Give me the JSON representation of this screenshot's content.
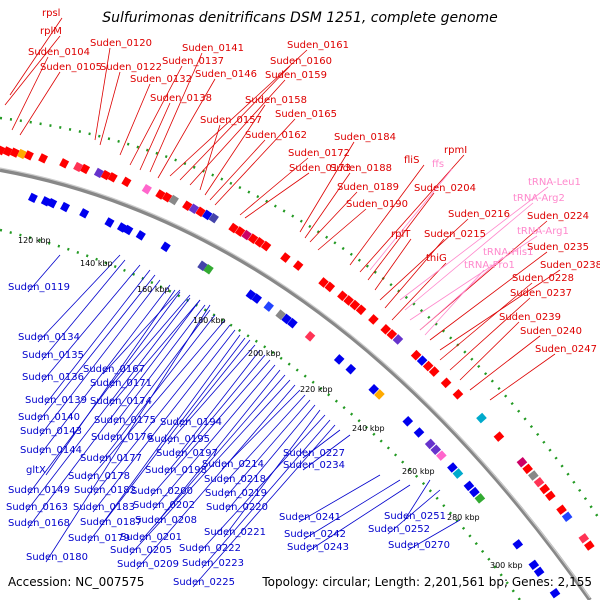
{
  "title": "Sulfurimonas denitrificans DSM 1251, complete genome",
  "accession": "Accession: NC_007575",
  "topology": "Topology: circular; Length: 2,201,561 bp; Genes: 2,155",
  "colors": {
    "outer_gene_label": "#dd0000",
    "inner_gene_label": "#0000cc",
    "rna_label": "#ff88cc",
    "backbone": "#888888",
    "tick": "#228822"
  },
  "scale_ticks": [
    "120 kbp",
    "140 kbp",
    "160 kbp",
    "180 kbp",
    "200 kbp",
    "220 kbp",
    "240 kbp",
    "260 kbp",
    "280 kbp",
    "300 kbp"
  ],
  "outer_labels": [
    {
      "id": "rpsl",
      "text": "rpsl"
    },
    {
      "id": "rplM",
      "text": "rplM"
    },
    {
      "id": "Suden_0104",
      "text": "Suden_0104"
    },
    {
      "id": "Suden_0105",
      "text": "Suden_0105"
    },
    {
      "id": "Suden_0120",
      "text": "Suden_0120"
    },
    {
      "id": "Suden_0122",
      "text": "Suden_0122"
    },
    {
      "id": "Suden_0132",
      "text": "Suden_0132"
    },
    {
      "id": "Suden_0137",
      "text": "Suden_0137"
    },
    {
      "id": "Suden_0138",
      "text": "Suden_0138"
    },
    {
      "id": "Suden_0141",
      "text": "Suden_0141"
    },
    {
      "id": "Suden_0146",
      "text": "Suden_0146"
    },
    {
      "id": "Suden_0157",
      "text": "Suden_0157"
    },
    {
      "id": "Suden_0158",
      "text": "Suden_0158"
    },
    {
      "id": "Suden_0159",
      "text": "Suden_0159"
    },
    {
      "id": "Suden_0160",
      "text": "Suden_0160"
    },
    {
      "id": "Suden_0161",
      "text": "Suden_0161"
    },
    {
      "id": "Suden_0162",
      "text": "Suden_0162"
    },
    {
      "id": "Suden_0165",
      "text": "Suden_0165"
    },
    {
      "id": "Suden_0172",
      "text": "Suden_0172"
    },
    {
      "id": "Suden_0173",
      "text": "Suden_0173"
    },
    {
      "id": "Suden_0184",
      "text": "Suden_0184"
    },
    {
      "id": "Suden_0188",
      "text": "Suden_0188"
    },
    {
      "id": "Suden_0189",
      "text": "Suden_0189"
    },
    {
      "id": "Suden_0190",
      "text": "Suden_0190"
    },
    {
      "id": "fliS",
      "text": "fliS"
    },
    {
      "id": "rpmI",
      "text": "rpmI"
    },
    {
      "id": "Suden_0204",
      "text": "Suden_0204"
    },
    {
      "id": "rplT",
      "text": "rplT"
    },
    {
      "id": "Suden_0216",
      "text": "Suden_0216"
    },
    {
      "id": "Suden_0215",
      "text": "Suden_0215"
    },
    {
      "id": "thiG",
      "text": "thiG"
    },
    {
      "id": "Suden_0224",
      "text": "Suden_0224"
    },
    {
      "id": "Suden_0235",
      "text": "Suden_0235"
    },
    {
      "id": "Suden_0238",
      "text": "Suden_0238"
    },
    {
      "id": "Suden_0228",
      "text": "Suden_0228"
    },
    {
      "id": "Suden_0237",
      "text": "Suden_0237"
    },
    {
      "id": "Suden_0239",
      "text": "Suden_0239"
    },
    {
      "id": "Suden_0240",
      "text": "Suden_0240"
    },
    {
      "id": "Suden_0247",
      "text": "Suden_0247"
    }
  ],
  "rna_labels": [
    {
      "id": "ffs",
      "text": "ffs"
    },
    {
      "id": "tRNA-Leu1",
      "text": "tRNA-Leu1"
    },
    {
      "id": "tRNA-Arg2",
      "text": "tRNA-Arg2"
    },
    {
      "id": "tRNA-Arg1",
      "text": "tRNA-Arg1"
    },
    {
      "id": "tRNA-His1",
      "text": "tRNA-His1"
    },
    {
      "id": "tRNA-Pro1",
      "text": "tRNA-Pro1"
    }
  ],
  "inner_labels": [
    {
      "id": "Suden_0119",
      "text": "Suden_0119"
    },
    {
      "id": "Suden_0134",
      "text": "Suden_0134"
    },
    {
      "id": "Suden_0135",
      "text": "Suden_0135"
    },
    {
      "id": "Suden_0136",
      "text": "Suden_0136"
    },
    {
      "id": "Suden_0139",
      "text": "Suden_0139"
    },
    {
      "id": "Suden_0140",
      "text": "Suden_0140"
    },
    {
      "id": "Suden_0143",
      "text": "Suden_0143"
    },
    {
      "id": "Suden_0144",
      "text": "Suden_0144"
    },
    {
      "id": "gltX",
      "text": "gltX"
    },
    {
      "id": "Suden_0149",
      "text": "Suden_0149"
    },
    {
      "id": "Suden_0163",
      "text": "Suden_0163"
    },
    {
      "id": "Suden_0168",
      "text": "Suden_0168"
    },
    {
      "id": "Suden_0180",
      "text": "Suden_0180"
    },
    {
      "id": "Suden_0167",
      "text": "Suden_0167"
    },
    {
      "id": "Suden_0171",
      "text": "Suden_0171"
    },
    {
      "id": "Suden_0174",
      "text": "Suden_0174"
    },
    {
      "id": "Suden_0175",
      "text": "Suden_0175"
    },
    {
      "id": "Suden_0176",
      "text": "Suden_0176"
    },
    {
      "id": "Suden_0177",
      "text": "Suden_0177"
    },
    {
      "id": "Suden_0178",
      "text": "Suden_0178"
    },
    {
      "id": "Suden_0182",
      "text": "Suden_0182"
    },
    {
      "id": "Suden_0183",
      "text": "Suden_0183"
    },
    {
      "id": "Suden_0187",
      "text": "Suden_0187"
    },
    {
      "id": "Suden_0179",
      "text": "Suden_0179"
    },
    {
      "id": "Suden_0194",
      "text": "Suden_0194"
    },
    {
      "id": "Suden_0195",
      "text": "Suden_0195"
    },
    {
      "id": "Suden_0197",
      "text": "Suden_0197"
    },
    {
      "id": "Suden_0198",
      "text": "Suden_0198"
    },
    {
      "id": "Suden_0200",
      "text": "Suden_0200"
    },
    {
      "id": "Suden_0202",
      "text": "Suden_0202"
    },
    {
      "id": "Suden_0208",
      "text": "Suden_0208"
    },
    {
      "id": "Suden_0201",
      "text": "Suden_0201"
    },
    {
      "id": "Suden_0205",
      "text": "Suden_0205"
    },
    {
      "id": "Suden_0209",
      "text": "Suden_0209"
    },
    {
      "id": "Suden_0214",
      "text": "Suden_0214"
    },
    {
      "id": "Suden_0218",
      "text": "Suden_0218"
    },
    {
      "id": "Suden_0219",
      "text": "Suden_0219"
    },
    {
      "id": "Suden_0220",
      "text": "Suden_0220"
    },
    {
      "id": "Suden_0221",
      "text": "Suden_0221"
    },
    {
      "id": "Suden_0222",
      "text": "Suden_0222"
    },
    {
      "id": "Suden_0223",
      "text": "Suden_0223"
    },
    {
      "id": "Suden_0225",
      "text": "Suden_0225"
    },
    {
      "id": "Suden_0227",
      "text": "Suden_0227"
    },
    {
      "id": "Suden_0234",
      "text": "Suden_0234"
    },
    {
      "id": "Suden_0241",
      "text": "Suden_0241"
    },
    {
      "id": "Suden_0242",
      "text": "Suden_0242"
    },
    {
      "id": "Suden_0243",
      "text": "Suden_0243"
    },
    {
      "id": "Suden_0251",
      "text": "Suden_0251"
    },
    {
      "id": "Suden_0252",
      "text": "Suden_0252"
    },
    {
      "id": "Suden_0270",
      "text": "Suden_0270"
    }
  ]
}
